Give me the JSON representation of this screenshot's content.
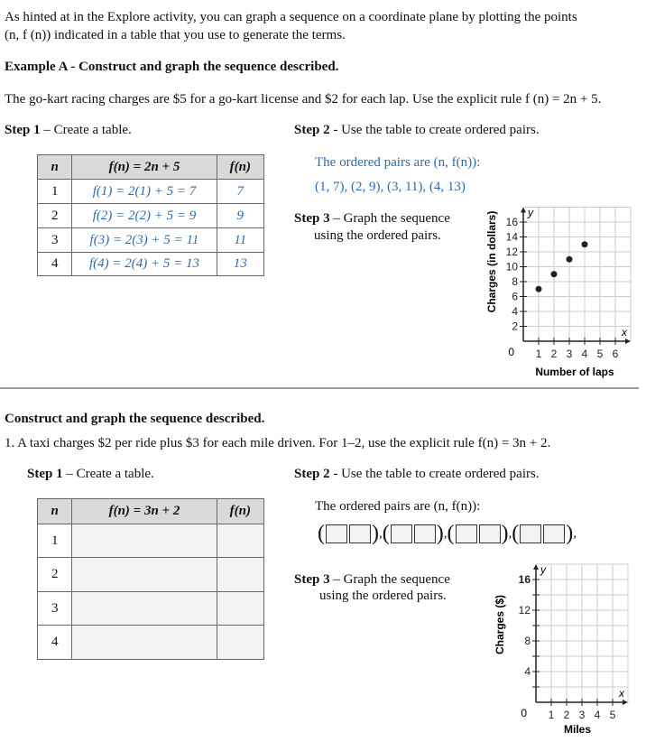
{
  "intro": {
    "line1": "As hinted at in the Explore activity, you can graph a sequence on a coordinate plane by plotting the points",
    "line2": "(n, f (n)) indicated in a table that you use to generate the terms."
  },
  "example": {
    "title": "Example A - Construct and graph the sequence described.",
    "problem": "The go-kart racing charges are $5 for a go-kart license and $2 for each lap.  Use the explicit rule f (n) = 2n + 5.",
    "step1_label": "Step 1",
    "step1_text": " – Create a table.",
    "step2_label": "Step 2",
    "step2_text": " - Use the table to create ordered pairs.",
    "table": {
      "headers": [
        "n",
        "f(n) = 2n + 5",
        "f(n)"
      ],
      "rows": [
        [
          "1",
          "f(1) = 2(1) + 5 = 7",
          "7"
        ],
        [
          "2",
          "f(2) = 2(2) + 5 = 9",
          "9"
        ],
        [
          "3",
          "f(3) = 2(3) + 5 = 11",
          "11"
        ],
        [
          "4",
          "f(4) = 2(4) + 5 = 13",
          "13"
        ]
      ]
    },
    "pairs_label": "The ordered pairs are (n, f(n)):",
    "pairs": "(1, 7), (2, 9), (3, 11), (4, 13)",
    "step3_label": "Step 3",
    "step3_text": " – Graph the sequence",
    "step3_text2": "using the ordered pairs.",
    "graph": {
      "xlabel": "Number of laps",
      "ylabel": "Charges (in dollars)",
      "x_axis_letter": "x",
      "y_axis_letter": "y",
      "origin": "0",
      "x_ticks": [
        "1",
        "2",
        "3",
        "4",
        "5",
        "6"
      ],
      "y_ticks": [
        "2",
        "4",
        "6",
        "8",
        "10",
        "12",
        "14",
        "16"
      ],
      "points": [
        [
          1,
          7
        ],
        [
          2,
          9
        ],
        [
          3,
          11
        ],
        [
          4,
          13
        ]
      ]
    }
  },
  "exercise": {
    "title": "Construct and graph the sequence described.",
    "problem": "1.  A taxi charges $2 per ride plus $3 for each mile driven. For 1–2, use the explicit rule f(n) = 3n + 2.",
    "step1_label": "Step 1",
    "step1_text": " – Create a table.",
    "step2_label": "Step 2",
    "step2_text": " - Use the table to create ordered pairs.",
    "table": {
      "headers": [
        "n",
        "f(n) = 3n + 2",
        "f(n)"
      ],
      "rows": [
        [
          "1",
          "",
          ""
        ],
        [
          "2",
          "",
          ""
        ],
        [
          "3",
          "",
          ""
        ],
        [
          "4",
          "",
          ""
        ]
      ]
    },
    "pairs_label": "The ordered pairs are (n, f(n)):",
    "step3_label": "Step 3",
    "step3_text": " – Graph the sequence",
    "step3_text2": "using the ordered pairs.",
    "graph": {
      "xlabel": "Miles",
      "ylabel": "Charges ($)",
      "x_axis_letter": "x",
      "y_axis_letter": "y",
      "origin": "0",
      "x_ticks": [
        "1",
        "2",
        "3",
        "4",
        "5"
      ],
      "y_ticks": [
        "4",
        "8",
        "12",
        "16"
      ],
      "points": []
    }
  }
}
